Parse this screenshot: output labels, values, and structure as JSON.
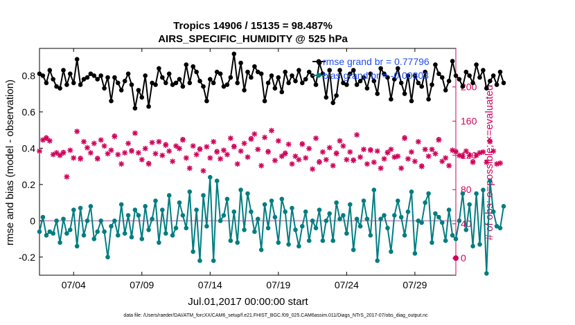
{
  "colors": {
    "rmse": "#000000",
    "bias": "#007d80",
    "obs": "#d1005a",
    "legend_text": "#1f4ff2",
    "zero": "#c8a0c8"
  },
  "chart_data": {
    "type": "line",
    "title_line1": "Tropics 14906 / 15135 = 98.487%",
    "title_line2": "AIRS_SPECIFIC_HUMIDITY @ 525 hPa",
    "xlabel": "Jul.01,2017 00:00:00 start",
    "ylabel_left": "rmse and bias (model - observation)",
    "ylabel_right": "# of obs: o=possible; ×=evaluated",
    "footer": "data file: /Users/raeder/DAI/ATM_forcXX/CAM6_setup/f.e21.FHIST_BGC.f09_025.CAM6assim.011/Diags_NTrS_2017-07/obs_diag_output.nc",
    "x_tick_labels": [
      "07/04",
      "07/09",
      "07/14",
      "07/19",
      "07/24",
      "07/29"
    ],
    "x_tick_days": [
      4,
      9,
      14,
      19,
      24,
      29
    ],
    "xlim": [
      1.5,
      32
    ],
    "ylim_left": [
      -0.3,
      0.95
    ],
    "y_ticks_left": [
      "-0.2",
      "0",
      "0.2",
      "0.4",
      "0.6",
      "0.8"
    ],
    "y_tick_values_left": [
      -0.2,
      0,
      0.2,
      0.4,
      0.6,
      0.8
    ],
    "ylim_right": [
      -20,
      245
    ],
    "y_ticks_right": [
      "0",
      "40",
      "80",
      "120",
      "160",
      "200"
    ],
    "y_tick_values_right": [
      0,
      40,
      80,
      120,
      160,
      200
    ],
    "legend": [
      "rmse grand br = 0.77796",
      "bias grand br = -0.00803"
    ],
    "series": [
      {
        "name": "rmse",
        "start_day": 1.5,
        "step_days": 0.25,
        "values": [
          0.81,
          0.8,
          0.76,
          0.83,
          0.78,
          0.74,
          0.73,
          0.83,
          0.75,
          0.81,
          0.76,
          0.89,
          0.75,
          0.78,
          0.79,
          0.81,
          0.8,
          0.78,
          0.8,
          0.73,
          0.79,
          0.66,
          0.79,
          0.76,
          0.72,
          0.77,
          0.81,
          0.75,
          0.62,
          0.72,
          0.68,
          0.8,
          0.63,
          0.76,
          0.75,
          0.84,
          0.79,
          0.76,
          0.81,
          0.75,
          0.76,
          0.78,
          0.74,
          0.86,
          0.76,
          0.85,
          0.82,
          0.77,
          0.74,
          0.66,
          0.78,
          0.76,
          0.82,
          0.81,
          0.74,
          0.75,
          0.79,
          0.92,
          0.76,
          0.87,
          0.72,
          0.82,
          0.79,
          0.85,
          0.82,
          0.81,
          0.66,
          0.76,
          0.8,
          0.73,
          0.79,
          0.71,
          0.82,
          0.76,
          0.8,
          0.77,
          0.83,
          0.76,
          0.78,
          0.82,
          0.8,
          0.75,
          0.87,
          0.81,
          0.68,
          0.83,
          0.65,
          0.69,
          0.83,
          0.76,
          0.75,
          0.81,
          0.83,
          0.75,
          0.77,
          0.79,
          0.73,
          0.81,
          0.77,
          0.7,
          0.84,
          0.81,
          0.79,
          0.67,
          0.78,
          0.84,
          0.76,
          0.7,
          0.8,
          0.66,
          0.8,
          0.76,
          0.74,
          0.82,
          0.67,
          0.75,
          0.86,
          0.81,
          0.79,
          0.72,
          0.77,
          0.88,
          0.8,
          0.78,
          0.74,
          0.82,
          0.8,
          0.76,
          0.86,
          0.79,
          0.83,
          0.73,
          0.77,
          0.8,
          0.75,
          0.82,
          0.76
        ]
      },
      {
        "name": "bias",
        "start_day": 1.5,
        "step_days": 0.25,
        "values": [
          -0.06,
          0.02,
          -0.08,
          -0.06,
          -0.07,
          0.0,
          -0.12,
          0.01,
          -0.07,
          -0.05,
          0.06,
          -0.14,
          0.07,
          -0.08,
          0.0,
          0.08,
          -0.1,
          -0.06,
          0.0,
          -0.06,
          -0.2,
          -0.03,
          0.0,
          -0.08,
          0.09,
          -0.07,
          0.03,
          -0.09,
          0.06,
          0.03,
          -0.1,
          0.08,
          -0.05,
          0.01,
          0.11,
          -0.12,
          0.06,
          -0.07,
          0.14,
          -0.08,
          -0.04,
          0.1,
          0.03,
          -0.04,
          0.16,
          -0.17,
          0.06,
          -0.22,
          0.14,
          -0.03,
          0.24,
          -0.22,
          0.22,
          0.0,
          0.03,
          0.12,
          -0.11,
          0.05,
          -0.12,
          0.17,
          -0.05,
          0.15,
          0.05,
          -0.06,
          0.01,
          -0.16,
          0.09,
          -0.04,
          0.11,
          0.02,
          -0.12,
          0.12,
          0.05,
          -0.13,
          0.07,
          -0.05,
          -0.14,
          -0.03,
          0.05,
          -0.11,
          0.0,
          -0.04,
          0.06,
          -0.11,
          0.0,
          0.04,
          -0.11,
          0.1,
          0.01,
          0.03,
          -0.07,
          0.09,
          -0.16,
          0.01,
          -0.03,
          0.11,
          0.01,
          -0.08,
          0.17,
          -0.22,
          0.01,
          0.03,
          -0.04,
          -0.17,
          0.03,
          0.11,
          0.02,
          -0.08,
          0.05,
          0.16,
          -0.18,
          0.0,
          -0.01,
          0.1,
          0.15,
          -0.12,
          0.04,
          0.02,
          -0.01,
          -0.11,
          0.06,
          -0.08,
          -0.1,
          0.0,
          0.15,
          -0.05,
          0.09,
          -0.14,
          0.15,
          -0.13,
          0.17,
          -0.29,
          0.22,
          0.05,
          -0.03,
          -0.04,
          0.08
        ]
      },
      {
        "name": "obs evaluated",
        "axis": "right",
        "start_day": 1.5,
        "step_days": 0.25,
        "values": [
          125,
          138,
          140,
          137,
          121,
          123,
          120,
          123,
          95,
          126,
          117,
          148,
          116,
          136,
          129,
          123,
          134,
          116,
          138,
          131,
          122,
          126,
          142,
          121,
          110,
          123,
          134,
          125,
          146,
          123,
          115,
          128,
          110,
          135,
          122,
          136,
          120,
          132,
          125,
          113,
          131,
          128,
          138,
          117,
          105,
          131,
          121,
          127,
          102,
          130,
          117,
          136,
          124,
          116,
          126,
          121,
          140,
          130,
          110,
          125,
          134,
          118,
          139,
          145,
          127,
          108,
          141,
          124,
          149,
          114,
          137,
          119,
          122,
          133,
          110,
          119,
          115,
          133,
          117,
          128,
          104,
          140,
          112,
          124,
          115,
          129,
          108,
          122,
          137,
          131,
          115,
          124,
          114,
          144,
          118,
          127,
          110,
          126,
          112,
          125,
          105,
          116,
          123,
          127,
          118,
          119,
          105,
          140,
          116,
          124,
          113,
          136,
          107,
          127,
          119,
          127,
          122,
          138,
          113,
          117,
          108,
          126,
          124,
          120,
          119,
          125,
          120,
          112,
          120,
          123,
          124,
          112,
          136,
          125,
          110,
          111
        ]
      },
      {
        "name": "obs possible",
        "axis": "right",
        "start_day": 1.5,
        "step_days": 0.25,
        "values": [
          126,
          139,
          141,
          138,
          122,
          124,
          121,
          124,
          97,
          127,
          118,
          149,
          117,
          137,
          130,
          124,
          135,
          117,
          139,
          132,
          123,
          127,
          143,
          122,
          111,
          124,
          135,
          126,
          147,
          124,
          116,
          129,
          111,
          136,
          123,
          137,
          121,
          133,
          126,
          114,
          132,
          129,
          139,
          118,
          106,
          132,
          122,
          128,
          103,
          131,
          118,
          137,
          125,
          117,
          127,
          122,
          141,
          131,
          111,
          126,
          135,
          119,
          140,
          146,
          128,
          109,
          142,
          125,
          150,
          115,
          138,
          120,
          123,
          134,
          111,
          120,
          116,
          134,
          118,
          129,
          105,
          141,
          113,
          125,
          116,
          130,
          109,
          123,
          138,
          132,
          116,
          125,
          115,
          145,
          119,
          128,
          111,
          127,
          113,
          126,
          106,
          117,
          124,
          128,
          119,
          120,
          106,
          141,
          117,
          125,
          114,
          137,
          108,
          128,
          120,
          128,
          123,
          139,
          114,
          118,
          109,
          127,
          125,
          121,
          120,
          126,
          121,
          113,
          121,
          124,
          125,
          113,
          137,
          126,
          111,
          112
        ]
      }
    ]
  }
}
